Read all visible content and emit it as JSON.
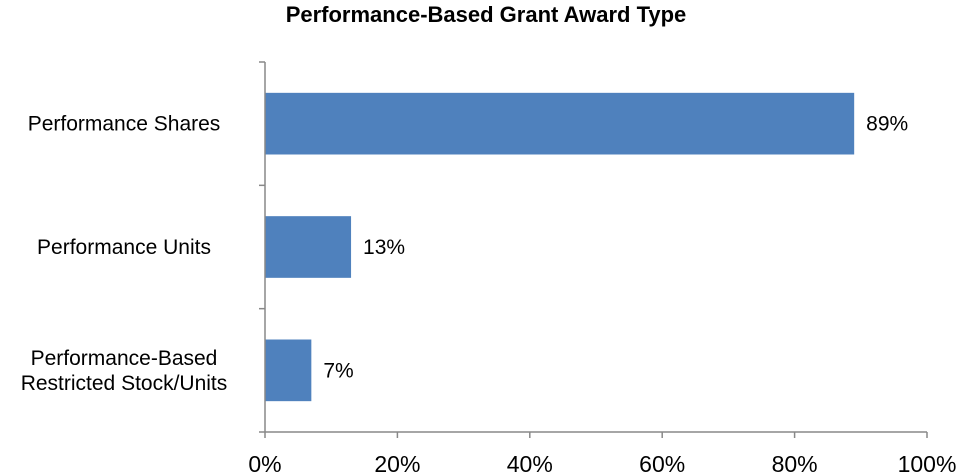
{
  "chart_data": {
    "type": "bar",
    "orientation": "horizontal",
    "title": "Performance-Based Grant Award Type",
    "categories": [
      [
        "Performance Shares"
      ],
      [
        "Performance Units"
      ],
      [
        "Performance-Based",
        "Restricted Stock/Units"
      ]
    ],
    "values": [
      89,
      13,
      7
    ],
    "data_labels": [
      "89%",
      "13%",
      "7%"
    ],
    "xlim": [
      0,
      100
    ],
    "xticks": [
      0,
      20,
      40,
      60,
      80,
      100
    ],
    "xtick_labels": [
      "0%",
      "20%",
      "40%",
      "60%",
      "80%",
      "100%"
    ],
    "xlabel": "",
    "ylabel": "",
    "grid": false,
    "legend": "none",
    "colors": {
      "bar": "#4f81bd",
      "axis": "#888888",
      "text": "#000000"
    }
  }
}
